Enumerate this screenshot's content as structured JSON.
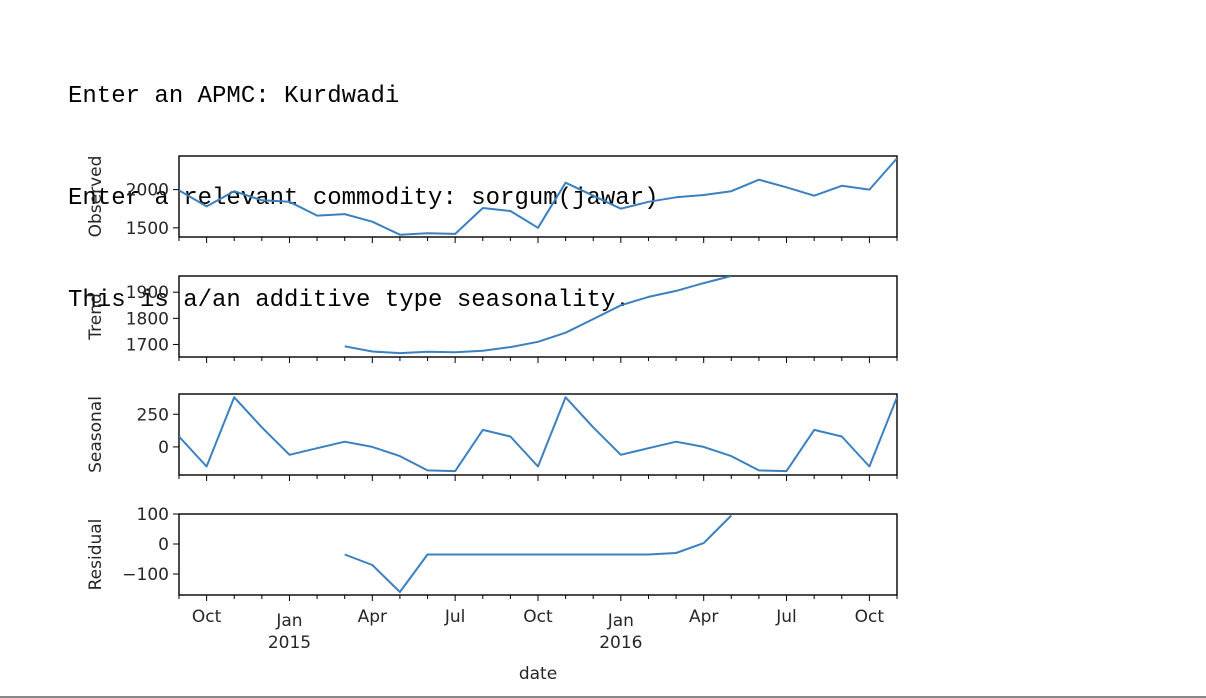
{
  "console": {
    "line1_prompt": "Enter an APMC: ",
    "line1_value": "Kurdwadi",
    "line2_prompt": "Enter a relevant commodity: ",
    "line2_value": "sorgum(jawar)",
    "line3": "This is a/an additive type seasonality."
  },
  "chart_data": {
    "type": "line",
    "line_color": "#3b80bf",
    "xlabel": "date",
    "x": [
      "2014-09",
      "2014-10",
      "2014-11",
      "2014-12",
      "2015-01",
      "2015-02",
      "2015-03",
      "2015-04",
      "2015-05",
      "2015-06",
      "2015-07",
      "2015-08",
      "2015-09",
      "2015-10",
      "2015-11",
      "2015-12",
      "2016-01",
      "2016-02",
      "2016-03",
      "2016-04",
      "2016-05",
      "2016-06",
      "2016-07",
      "2016-08",
      "2016-09",
      "2016-10",
      "2016-11"
    ],
    "xlim": [
      "2014-09",
      "2016-11"
    ],
    "x_major_ticks": [
      {
        "date": "2014-10",
        "label": "Oct",
        "sub": ""
      },
      {
        "date": "2015-01",
        "label": "Jan",
        "sub": "2015"
      },
      {
        "date": "2015-04",
        "label": "Apr",
        "sub": ""
      },
      {
        "date": "2015-07",
        "label": "Jul",
        "sub": ""
      },
      {
        "date": "2015-10",
        "label": "Oct",
        "sub": ""
      },
      {
        "date": "2016-01",
        "label": "Jan",
        "sub": "2016"
      },
      {
        "date": "2016-04",
        "label": "Apr",
        "sub": ""
      },
      {
        "date": "2016-07",
        "label": "Jul",
        "sub": ""
      },
      {
        "date": "2016-10",
        "label": "Oct",
        "sub": ""
      }
    ],
    "panels": [
      {
        "ylabel": "Observed",
        "ylim": [
          1380,
          2440
        ],
        "yticks": [
          1500,
          2000
        ],
        "values": [
          1990,
          1780,
          1980,
          1860,
          1840,
          1660,
          1680,
          1580,
          1410,
          1430,
          1420,
          1760,
          1720,
          1500,
          2090,
          1920,
          1750,
          1840,
          1900,
          1930,
          1980,
          2130,
          2030,
          1920,
          2050,
          2000,
          2410
        ]
      },
      {
        "ylabel": "Trend",
        "ylim": [
          1652,
          1962
        ],
        "yticks": [
          1700,
          1800,
          1900
        ],
        "values": [
          null,
          null,
          null,
          null,
          null,
          null,
          1693,
          1673,
          1667,
          1672,
          1670,
          1676,
          1690,
          1710,
          1745,
          1797,
          1850,
          1882,
          1905,
          1935,
          1962,
          null,
          null,
          null,
          null,
          null,
          null
        ]
      },
      {
        "ylabel": "Seasonal",
        "ylim": [
          -215,
          405
        ],
        "yticks": [
          0,
          250
        ],
        "values": [
          80,
          -150,
          380,
          150,
          -60,
          -10,
          40,
          0,
          -70,
          -180,
          -185,
          130,
          80,
          -150,
          380,
          150,
          -60,
          -10,
          40,
          0,
          -70,
          -180,
          -185,
          130,
          80,
          -150,
          380
        ]
      },
      {
        "ylabel": "Residual",
        "ylim": [
          -170,
          100
        ],
        "yticks": [
          -100,
          0,
          100
        ],
        "ytick_labels": [
          "−100",
          "0",
          "100"
        ],
        "values": [
          null,
          null,
          null,
          null,
          null,
          null,
          -35,
          -70,
          -160,
          -35,
          -35,
          -35,
          -35,
          -35,
          -35,
          -35,
          -35,
          -35,
          -30,
          3,
          95,
          null,
          null,
          null,
          null,
          null,
          null
        ]
      }
    ]
  }
}
